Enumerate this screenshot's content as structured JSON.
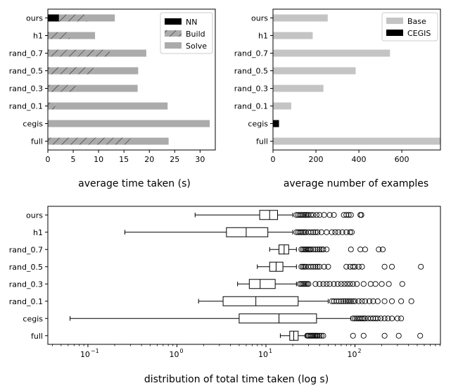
{
  "chart_data": [
    {
      "type": "bar",
      "orientation": "horizontal",
      "stacked": true,
      "caption": "average time taken (s)",
      "categories": [
        "ours",
        "h1",
        "rand_0.7",
        "rand_0.5",
        "rand_0.3",
        "rand_0.1",
        "cegis",
        "full"
      ],
      "series": [
        {
          "name": "NN",
          "color": "#000000",
          "hatch": false,
          "values": [
            2.2,
            0,
            0,
            0,
            0,
            0,
            0,
            0
          ]
        },
        {
          "name": "Build",
          "color": "#ababab",
          "hatch": true,
          "values": [
            5.5,
            4.3,
            12.2,
            9.0,
            5.5,
            1.5,
            0,
            16.3
          ]
        },
        {
          "name": "Solve",
          "color": "#ababab",
          "hatch": false,
          "values": [
            5.5,
            5.0,
            7.2,
            8.8,
            12.2,
            22.1,
            31.9,
            7.5
          ]
        }
      ],
      "xlim": [
        0,
        33
      ],
      "xticks": [
        0,
        5,
        10,
        15,
        20,
        25,
        30
      ],
      "legend": "top-right"
    },
    {
      "type": "bar",
      "orientation": "horizontal",
      "stacked": true,
      "caption": "average number of examples",
      "categories": [
        "ours",
        "h1",
        "rand_0.7",
        "rand_0.5",
        "rand_0.3",
        "rand_0.1",
        "cegis",
        "full"
      ],
      "series": [
        {
          "name": "Base",
          "color": "#c4c4c4",
          "values": [
            255,
            185,
            545,
            385,
            235,
            85,
            0,
            780
          ]
        },
        {
          "name": "CEGIS",
          "color": "#000000",
          "values": [
            0,
            0,
            0,
            0,
            0,
            0,
            28,
            0
          ]
        }
      ],
      "xlim": [
        0,
        780
      ],
      "xticks": [
        0,
        200,
        400,
        600
      ],
      "legend": "top-right"
    },
    {
      "type": "boxplot",
      "orientation": "horizontal",
      "xscale": "log",
      "caption": "distribution of total time taken (log s)",
      "categories": [
        "ours",
        "h1",
        "rand_0.7",
        "rand_0.5",
        "rand_0.3",
        "rand_0.1",
        "cegis",
        "full"
      ],
      "xlim_log10": [
        -1.45,
        2.96
      ],
      "xticks_log10": [
        -1,
        0,
        1,
        2
      ],
      "xtick_labels": [
        [
          "10",
          "−1"
        ],
        [
          "10",
          "0"
        ],
        [
          "10",
          "1"
        ],
        [
          "10",
          "2"
        ]
      ],
      "boxes": [
        {
          "label": "ours",
          "whislo": 1.6,
          "q1": 8.5,
          "med": 11,
          "q3": 13.5,
          "whishi": 20,
          "fliers": [
            22,
            23,
            24,
            25,
            26,
            27,
            28,
            29,
            30,
            32,
            34,
            37,
            40,
            45,
            52,
            58,
            75,
            80,
            85,
            90,
            115,
            118
          ]
        },
        {
          "label": "h1",
          "whislo": 0.26,
          "q1": 3.6,
          "med": 6.0,
          "q3": 10.5,
          "whishi": 20,
          "fliers": [
            22,
            23,
            24,
            25,
            26,
            27,
            28,
            30,
            32,
            34,
            36,
            38,
            42,
            48,
            55,
            60,
            65,
            72,
            80,
            88,
            92
          ]
        },
        {
          "label": "rand_0.7",
          "whislo": 11,
          "q1": 14,
          "med": 16,
          "q3": 18,
          "whishi": 22,
          "fliers": [
            25,
            26,
            27,
            28,
            29,
            30,
            31,
            32,
            34,
            36,
            38,
            40,
            42,
            44,
            48,
            90,
            115,
            130,
            185,
            205
          ]
        },
        {
          "label": "rand_0.5",
          "whislo": 8,
          "q1": 11,
          "med": 13,
          "q3": 15.5,
          "whishi": 22,
          "fliers": [
            25,
            26,
            27,
            28,
            30,
            32,
            34,
            36,
            38,
            40,
            45,
            50,
            80,
            88,
            95,
            100,
            110,
            120,
            215,
            260,
            550
          ]
        },
        {
          "label": "rand_0.3",
          "whislo": 4.8,
          "q1": 6.5,
          "med": 8.6,
          "q3": 12.7,
          "whishi": 22,
          "fliers": [
            24,
            25,
            26,
            27,
            28,
            29,
            30,
            36,
            40,
            44,
            48,
            52,
            58,
            64,
            70,
            76,
            82,
            88,
            95,
            105,
            125,
            150,
            170,
            200,
            240,
            340
          ]
        },
        {
          "label": "rand_0.1",
          "whislo": 1.75,
          "q1": 3.3,
          "med": 7.7,
          "q3": 23,
          "whishi": 50,
          "fliers": [
            55,
            58,
            62,
            66,
            70,
            74,
            78,
            82,
            86,
            90,
            95,
            100,
            110,
            120,
            130,
            145,
            160,
            180,
            215,
            260,
            330,
            430
          ]
        },
        {
          "label": "cegis",
          "whislo": 0.063,
          "q1": 5.0,
          "med": 14,
          "q3": 37,
          "whishi": 90,
          "fliers": [
            95,
            100,
            105,
            110,
            115,
            120,
            125,
            130,
            140,
            150,
            160,
            170,
            180,
            195,
            215,
            235,
            260,
            300,
            330
          ]
        },
        {
          "label": "full",
          "whislo": 14.5,
          "q1": 18.5,
          "med": 20.5,
          "q3": 23,
          "whishi": 28,
          "fliers": [
            29,
            30,
            31,
            32,
            33,
            34,
            35,
            36,
            37,
            38,
            40,
            42,
            44,
            95,
            125,
            215,
            310,
            540
          ]
        }
      ]
    }
  ]
}
